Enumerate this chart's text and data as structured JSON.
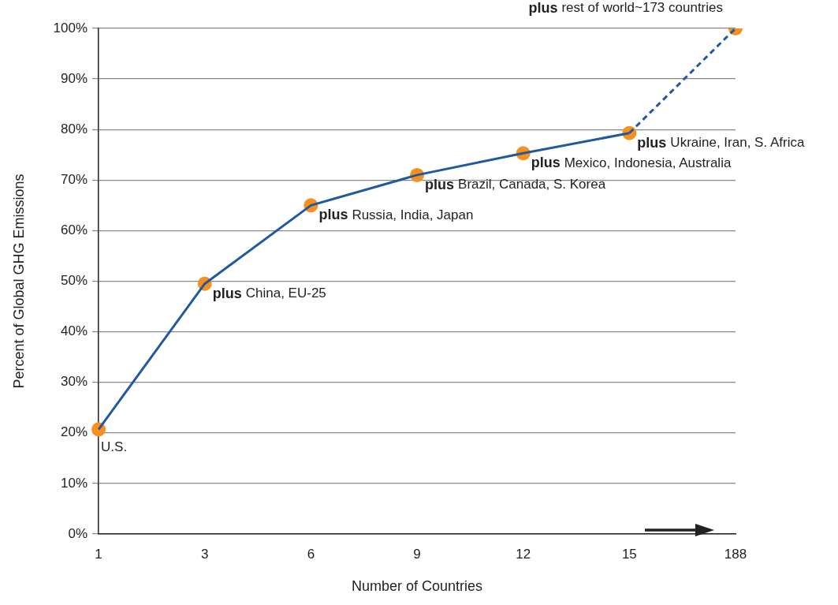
{
  "chart_data": {
    "type": "line",
    "xlabel": "Number of Countries",
    "ylabel": "Percent of Global GHG Emissions",
    "categories": [
      "1",
      "3",
      "6",
      "9",
      "12",
      "15",
      "188"
    ],
    "series": [
      {
        "color": "#1f5aa0",
        "line_style": "solid",
        "marker": "none",
        "values": [
          20.7,
          49.5,
          65,
          71,
          75.3,
          79.3,
          null
        ]
      },
      {
        "color": "#1f5aa0",
        "line_style": "dashed",
        "marker": "none",
        "values": [
          null,
          null,
          null,
          null,
          null,
          79.3,
          100
        ]
      },
      {
        "type": "scatter",
        "color": "#f7901e",
        "marker": "circle",
        "x": [
          "1",
          "3",
          "6",
          "9",
          "12",
          "15",
          "188"
        ],
        "values": [
          20.7,
          49.5,
          65,
          71,
          75.3,
          79.3,
          100
        ]
      }
    ],
    "ylim": [
      0,
      100
    ],
    "yticks": [
      {
        "value": 0,
        "label": "0%"
      },
      {
        "value": 10,
        "label": "10%"
      },
      {
        "value": 20,
        "label": "20%"
      },
      {
        "value": 30,
        "label": "30%"
      },
      {
        "value": 40,
        "label": "40%"
      },
      {
        "value": 50,
        "label": "50%"
      },
      {
        "value": 60,
        "label": "60%"
      },
      {
        "value": 70,
        "label": "70%"
      },
      {
        "value": 80,
        "label": "80%"
      },
      {
        "value": 90,
        "label": "90%"
      },
      {
        "value": 100,
        "label": "100%"
      }
    ],
    "grid": "y",
    "legend": false,
    "annotations": [
      {
        "text": "U.S.",
        "x": "1",
        "y": 20.7
      },
      {
        "text": "plus China, EU-25",
        "x": "3",
        "y": 49.5
      },
      {
        "text": "plus Russia, India, Japan",
        "x": "6",
        "y": 65
      },
      {
        "text": "plus Brazil, Canada, S. Korea",
        "x": "9",
        "y": 71
      },
      {
        "text": "plus Mexico, Indonesia, Australia",
        "x": "12",
        "y": 75.3
      },
      {
        "text": "plus Ukraine, Iran, S. Africa",
        "x": "15",
        "y": 79.3
      },
      {
        "text": "plus rest of world~173 countries",
        "x": "188",
        "y": 100
      }
    ]
  }
}
